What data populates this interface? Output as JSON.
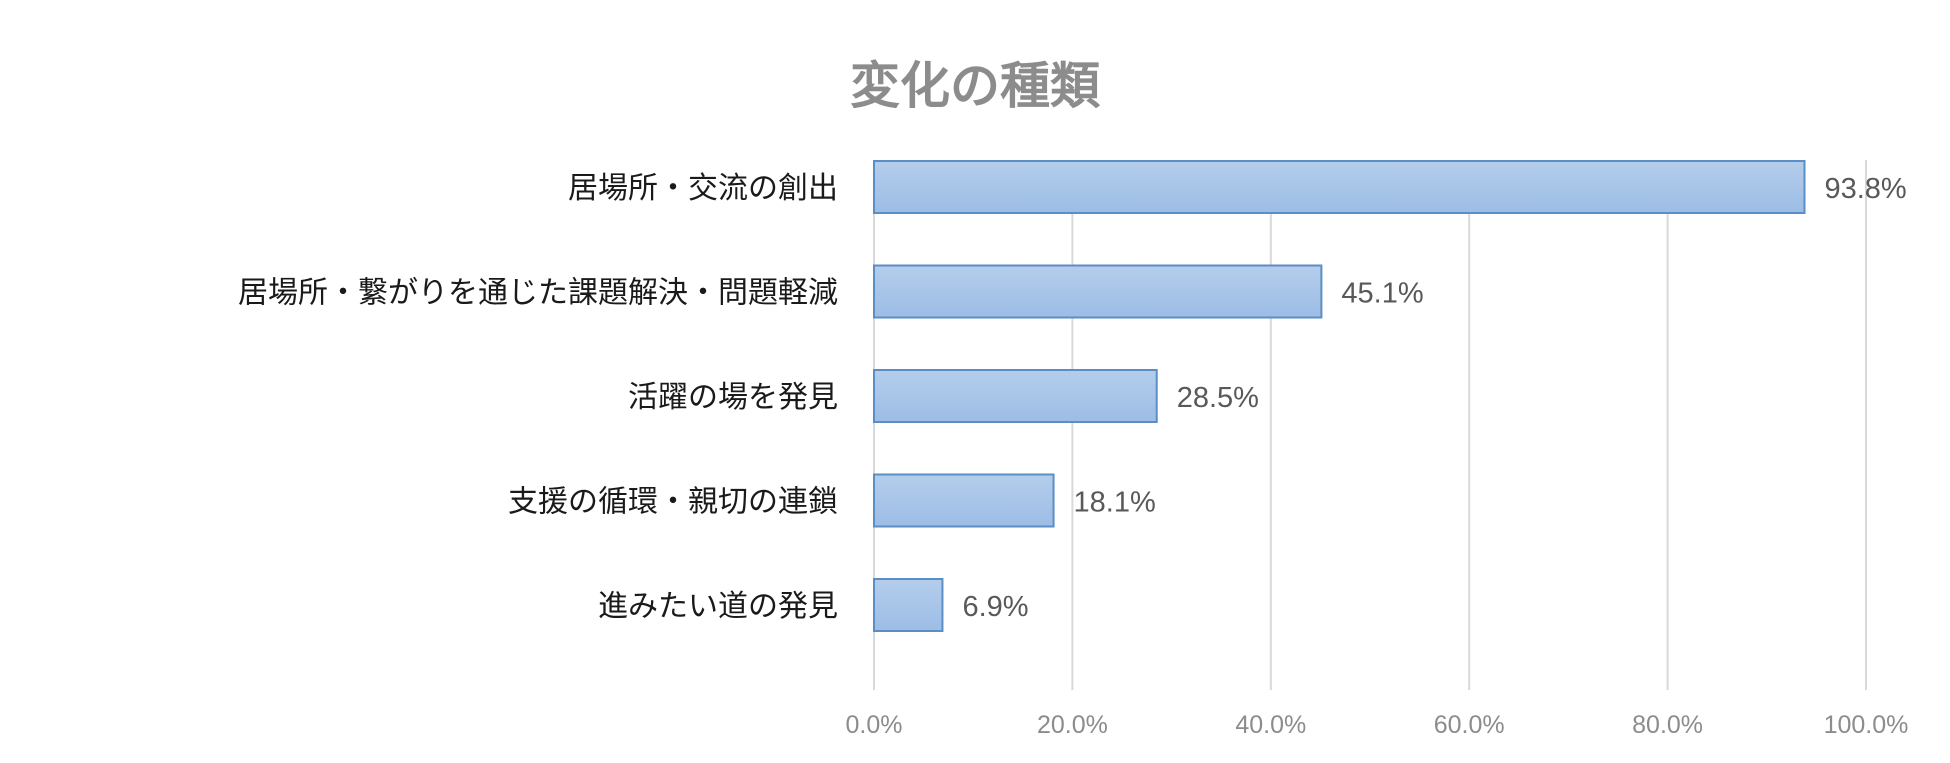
{
  "chart_data": {
    "type": "bar",
    "orientation": "horizontal",
    "title": "変化の種類",
    "categories": [
      "居場所・交流の創出",
      "居場所・繋がりを通じた課題解決・問題軽減",
      "活躍の場を発見",
      "支援の循環・親切の連鎖",
      "進みたい道の発見"
    ],
    "values": [
      93.8,
      45.1,
      28.5,
      18.1,
      6.9
    ],
    "data_labels": [
      "93.8%",
      "45.1%",
      "28.5%",
      "18.1%",
      "6.9%"
    ],
    "x_ticks": [
      "0.0%",
      "20.0%",
      "40.0%",
      "60.0%",
      "80.0%",
      "100.0%"
    ],
    "xlim": [
      0,
      100
    ],
    "xlabel": "",
    "ylabel": "",
    "grid": true,
    "legend": "none",
    "colors": {
      "bar_top": "#b4cdeb",
      "bar_bottom": "#9dbde6",
      "bar_border": "#5b8ec4",
      "grid": "#d9d9d9",
      "title": "#8c8c8c",
      "tick_text": "#8c8c8c",
      "label_text": "#595959",
      "category_text": "#1a1a1a"
    }
  }
}
